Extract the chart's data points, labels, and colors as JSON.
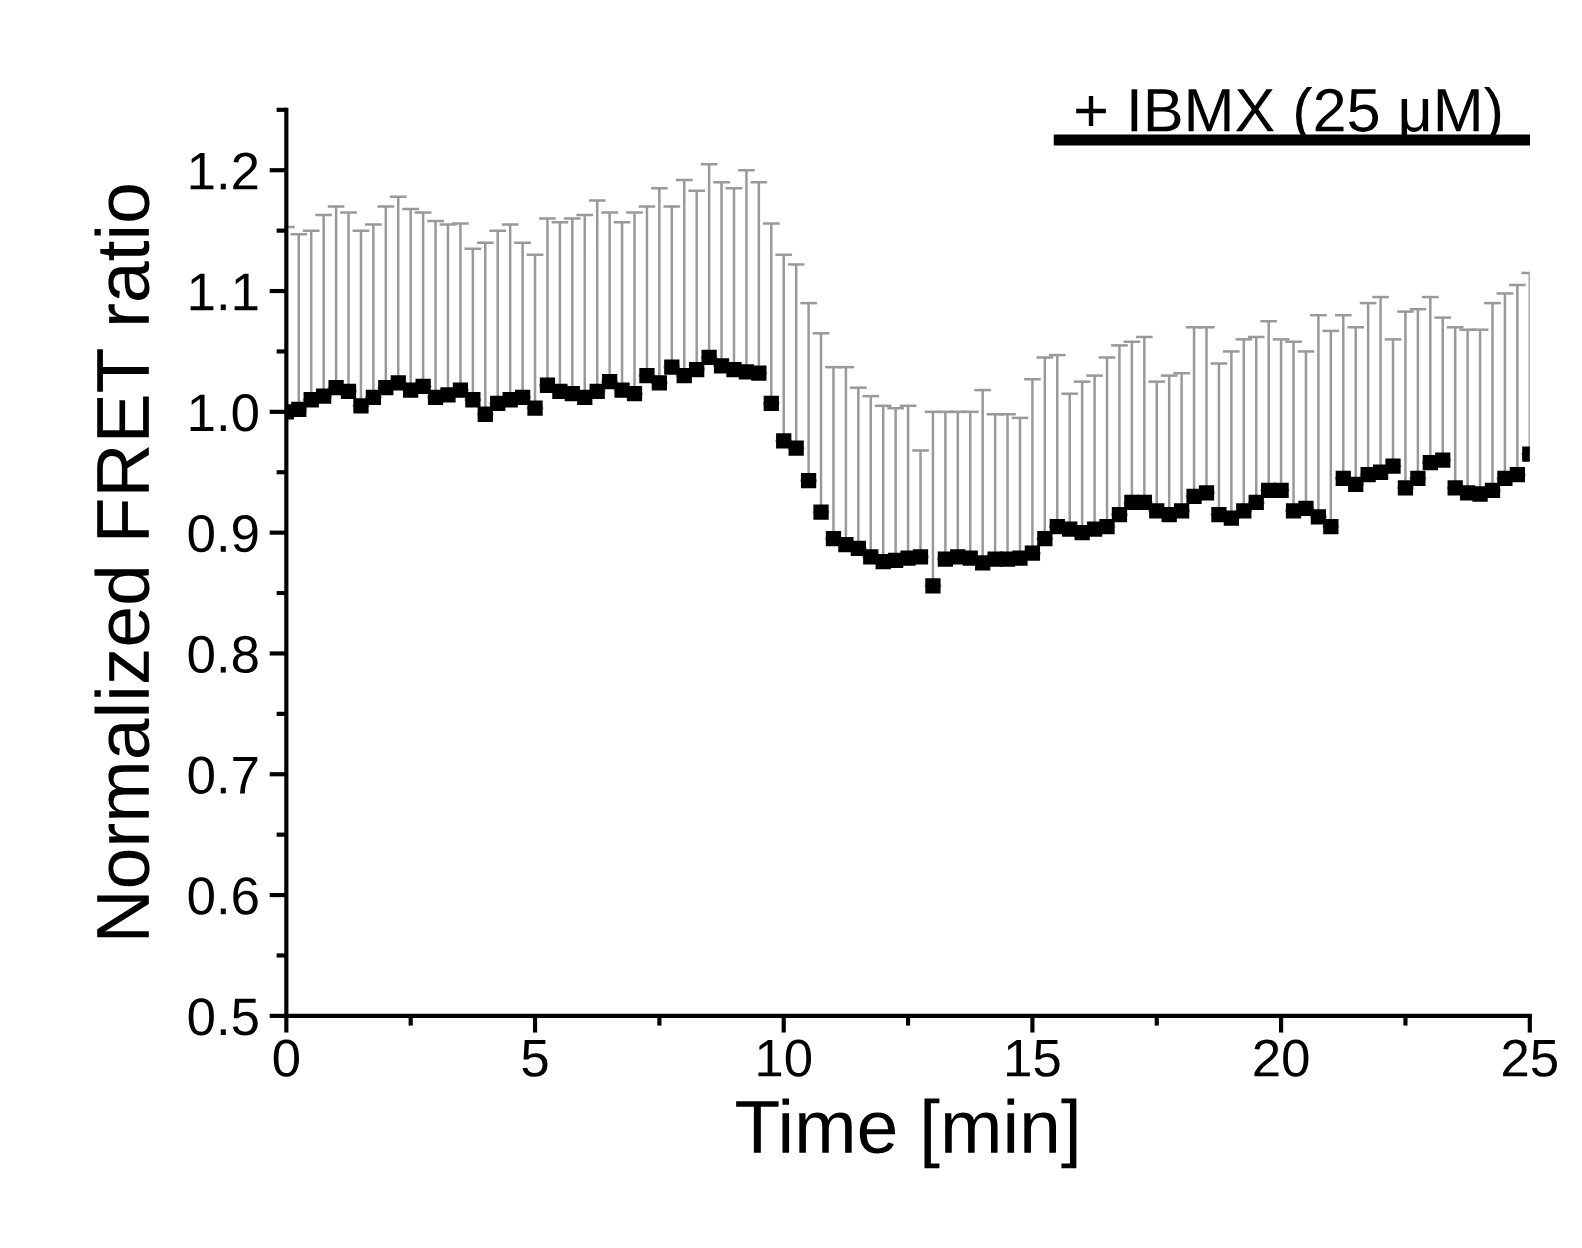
{
  "chart_data": {
    "type": "scatter",
    "xlabel": "Time [min]",
    "ylabel": "Normalized FRET ratio",
    "x": [
      0,
      0.25,
      0.5,
      0.75,
      1,
      1.25,
      1.5,
      1.75,
      2,
      2.25,
      2.5,
      2.75,
      3,
      3.25,
      3.5,
      3.75,
      4,
      4.25,
      4.5,
      4.75,
      5,
      5.25,
      5.5,
      5.75,
      6,
      6.25,
      6.5,
      6.75,
      7,
      7.25,
      7.5,
      7.75,
      8,
      8.25,
      8.5,
      8.75,
      9,
      9.25,
      9.5,
      9.75,
      10,
      10.25,
      10.5,
      10.75,
      11,
      11.25,
      11.5,
      11.75,
      12,
      12.25,
      12.5,
      12.75,
      13,
      13.25,
      13.5,
      13.75,
      14,
      14.25,
      14.5,
      14.75,
      15,
      15.25,
      15.5,
      15.75,
      16,
      16.25,
      16.5,
      16.75,
      17,
      17.25,
      17.5,
      17.75,
      18,
      18.25,
      18.5,
      18.75,
      19,
      19.25,
      19.5,
      19.75,
      20,
      20.25,
      20.5,
      20.75,
      21,
      21.25,
      21.5,
      21.75,
      22,
      22.25,
      22.5,
      22.75,
      23,
      23.25,
      23.5,
      23.75,
      24,
      24.25,
      24.5,
      24.75,
      25
    ],
    "series": [
      {
        "color": "#000000",
        "values": [
          1.0,
          1.002,
          1.01,
          1.013,
          1.02,
          1.017,
          1.005,
          1.012,
          1.02,
          1.024,
          1.018,
          1.021,
          1.012,
          1.014,
          1.018,
          1.01,
          0.998,
          1.007,
          1.01,
          1.012,
          1.003,
          1.022,
          1.017,
          1.015,
          1.012,
          1.017,
          1.025,
          1.018,
          1.015,
          1.03,
          1.024,
          1.037,
          1.03,
          1.035,
          1.045,
          1.038,
          1.035,
          1.033,
          1.032,
          1.007,
          0.976,
          0.97,
          0.943,
          0.917,
          0.895,
          0.89,
          0.887,
          0.88,
          0.876,
          0.877,
          0.879,
          0.88,
          0.856,
          0.878,
          0.88,
          0.879,
          0.875,
          0.878,
          0.878,
          0.879,
          0.883,
          0.895,
          0.905,
          0.903,
          0.9,
          0.903,
          0.905,
          0.915,
          0.925,
          0.925,
          0.918,
          0.915,
          0.918,
          0.93,
          0.933,
          0.915,
          0.912,
          0.918,
          0.925,
          0.935,
          0.935,
          0.918,
          0.92,
          0.913,
          0.905,
          0.945,
          0.94,
          0.948,
          0.95,
          0.955,
          0.937,
          0.945,
          0.958,
          0.96,
          0.937,
          0.933,
          0.932,
          0.935,
          0.945,
          0.948,
          0.965
        ],
        "errors": [
          [
            1.0,
            1.153
          ],
          [
            1.002,
            1.147
          ],
          [
            1.01,
            1.15
          ],
          [
            1.013,
            1.163
          ],
          [
            1.02,
            1.17
          ],
          [
            1.017,
            1.165
          ],
          [
            1.005,
            1.15
          ],
          [
            1.012,
            1.155
          ],
          [
            1.02,
            1.17
          ],
          [
            1.024,
            1.178
          ],
          [
            1.018,
            1.168
          ],
          [
            1.021,
            1.165
          ],
          [
            1.012,
            1.158
          ],
          [
            1.014,
            1.155
          ],
          [
            1.018,
            1.156
          ],
          [
            1.01,
            1.135
          ],
          [
            0.998,
            1.14
          ],
          [
            1.007,
            1.15
          ],
          [
            1.01,
            1.155
          ],
          [
            1.012,
            1.14
          ],
          [
            1.003,
            1.13
          ],
          [
            1.022,
            1.16
          ],
          [
            1.017,
            1.157
          ],
          [
            1.015,
            1.16
          ],
          [
            1.012,
            1.163
          ],
          [
            1.017,
            1.175
          ],
          [
            1.025,
            1.165
          ],
          [
            1.018,
            1.157
          ],
          [
            1.015,
            1.165
          ],
          [
            1.03,
            1.17
          ],
          [
            1.024,
            1.185
          ],
          [
            1.037,
            1.17
          ],
          [
            1.03,
            1.192
          ],
          [
            1.035,
            1.183
          ],
          [
            1.045,
            1.205
          ],
          [
            1.038,
            1.19
          ],
          [
            1.035,
            1.185
          ],
          [
            1.033,
            1.2
          ],
          [
            1.032,
            1.19
          ],
          [
            1.007,
            1.156
          ],
          [
            0.976,
            1.13
          ],
          [
            0.97,
            1.122
          ],
          [
            0.943,
            1.09
          ],
          [
            0.917,
            1.065
          ],
          [
            0.895,
            1.037
          ],
          [
            0.89,
            1.037
          ],
          [
            0.887,
            1.02
          ],
          [
            0.88,
            1.013
          ],
          [
            0.876,
            1.005
          ],
          [
            0.877,
            1.003
          ],
          [
            0.879,
            1.005
          ],
          [
            0.88,
            0.968
          ],
          [
            0.856,
            1.0
          ],
          [
            0.878,
            1.0
          ],
          [
            0.88,
            1.0
          ],
          [
            0.879,
            1.0
          ],
          [
            0.875,
            1.018
          ],
          [
            0.878,
            0.998
          ],
          [
            0.878,
            0.998
          ],
          [
            0.879,
            0.995
          ],
          [
            0.883,
            1.027
          ],
          [
            0.895,
            1.045
          ],
          [
            0.905,
            1.047
          ],
          [
            0.903,
            1.015
          ],
          [
            0.9,
            1.025
          ],
          [
            0.903,
            1.03
          ],
          [
            0.905,
            1.045
          ],
          [
            0.915,
            1.055
          ],
          [
            0.925,
            1.058
          ],
          [
            0.925,
            1.062
          ],
          [
            0.918,
            1.025
          ],
          [
            0.915,
            1.03
          ],
          [
            0.918,
            1.032
          ],
          [
            0.93,
            1.07
          ],
          [
            0.933,
            1.07
          ],
          [
            0.915,
            1.04
          ],
          [
            0.912,
            1.05
          ],
          [
            0.918,
            1.06
          ],
          [
            0.925,
            1.062
          ],
          [
            0.935,
            1.075
          ],
          [
            0.935,
            1.06
          ],
          [
            0.918,
            1.058
          ],
          [
            0.92,
            1.05
          ],
          [
            0.913,
            1.08
          ],
          [
            0.905,
            1.067
          ],
          [
            0.945,
            1.08
          ],
          [
            0.94,
            1.07
          ],
          [
            0.948,
            1.09
          ],
          [
            0.95,
            1.095
          ],
          [
            0.955,
            1.06
          ],
          [
            0.937,
            1.083
          ],
          [
            0.945,
            1.085
          ],
          [
            0.958,
            1.095
          ],
          [
            0.96,
            1.078
          ],
          [
            0.937,
            1.07
          ],
          [
            0.933,
            1.068
          ],
          [
            0.932,
            1.068
          ],
          [
            0.935,
            1.09
          ],
          [
            0.945,
            1.098
          ],
          [
            0.948,
            1.105
          ],
          [
            0.965,
            1.115
          ]
        ]
      }
    ],
    "xlim": [
      0,
      25
    ],
    "xticks": [
      0,
      {
        "value": 2.5,
        "label": null
      },
      5,
      {
        "value": 7.5,
        "label": null
      },
      10,
      {
        "value": 12.5,
        "label": null
      },
      15,
      {
        "value": 17.5,
        "label": null
      },
      20,
      {
        "value": 22.5,
        "label": null
      },
      25
    ],
    "ylim": [
      0.5,
      1.25
    ],
    "yticks": [
      0.5,
      {
        "value": 0.55,
        "label": null
      },
      0.6,
      {
        "value": 0.65,
        "label": null
      },
      0.7,
      {
        "value": 0.75,
        "label": null
      },
      0.8,
      {
        "value": 0.85,
        "label": null
      },
      0.9,
      {
        "value": 0.95,
        "label": null
      },
      {
        "value": 1.0,
        "label": "1.0"
      },
      {
        "value": 1.05,
        "label": null
      },
      1.1,
      {
        "value": 1.15,
        "label": null
      },
      1.2,
      {
        "value": 1.25,
        "label": null
      }
    ],
    "annotations": [
      "+ IBMX (25 μM)"
    ],
    "marker": "square",
    "grid": false,
    "legend": false
  }
}
